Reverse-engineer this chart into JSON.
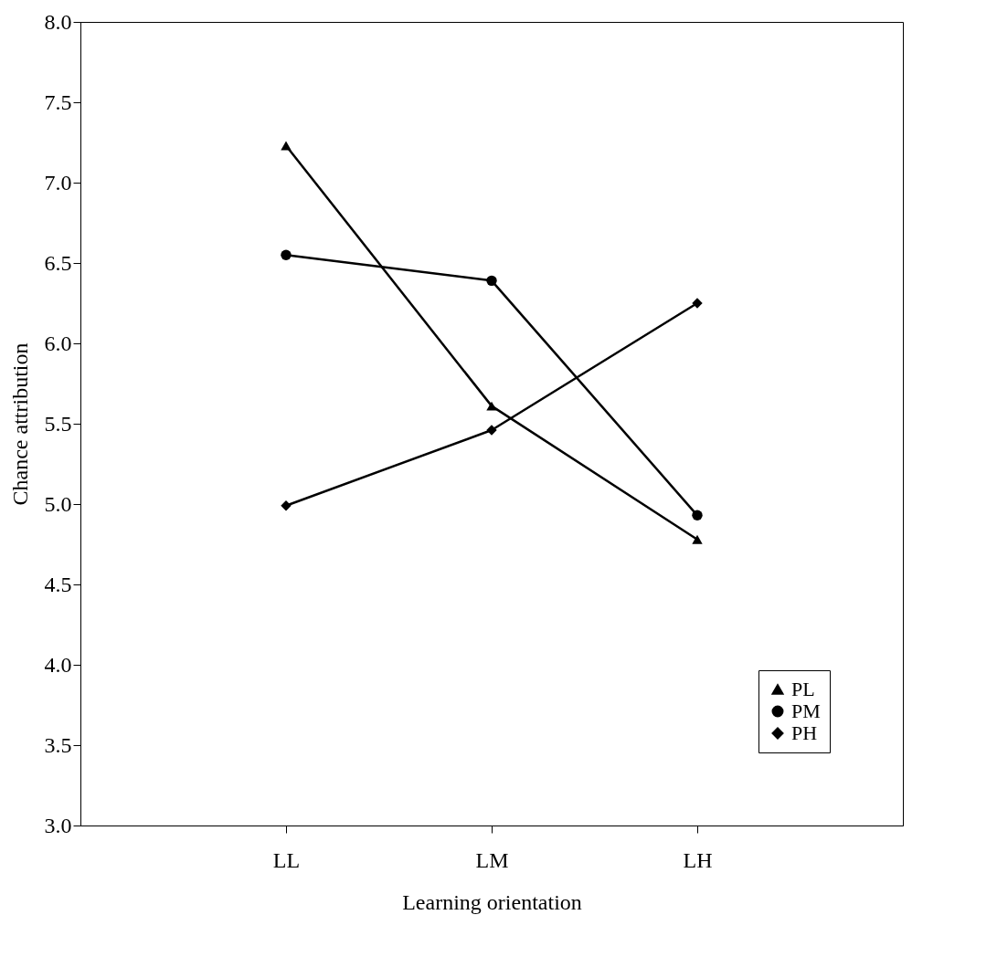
{
  "chart_data": {
    "type": "line",
    "xlabel": "Learning orientation",
    "ylabel": "Chance attribution",
    "categories": [
      "LL",
      "LM",
      "LH"
    ],
    "series": [
      {
        "name": "PL",
        "color": "#000000",
        "marker": "triangle",
        "values": [
          7.23,
          5.61,
          4.78
        ]
      },
      {
        "name": "PM",
        "color": "#000000",
        "marker": "circle",
        "values": [
          6.55,
          6.39,
          4.93
        ]
      },
      {
        "name": "PH",
        "color": "#000000",
        "marker": "diamond",
        "values": [
          4.99,
          5.46,
          6.25
        ]
      }
    ],
    "ylim": [
      3.0,
      8.0
    ],
    "yticks": [
      {
        "value": 3,
        "label": "3.0"
      },
      3.5,
      {
        "value": 4,
        "label": "4.0"
      },
      4.5,
      {
        "value": 5,
        "label": "5.0"
      },
      5.5,
      {
        "value": 6,
        "label": "6.0"
      },
      6.5,
      {
        "value": 7,
        "label": "7.0"
      },
      7.5,
      {
        "value": 8,
        "label": "8.0"
      }
    ],
    "grid": false,
    "legend": "bottom right",
    "line_style": "solid"
  }
}
